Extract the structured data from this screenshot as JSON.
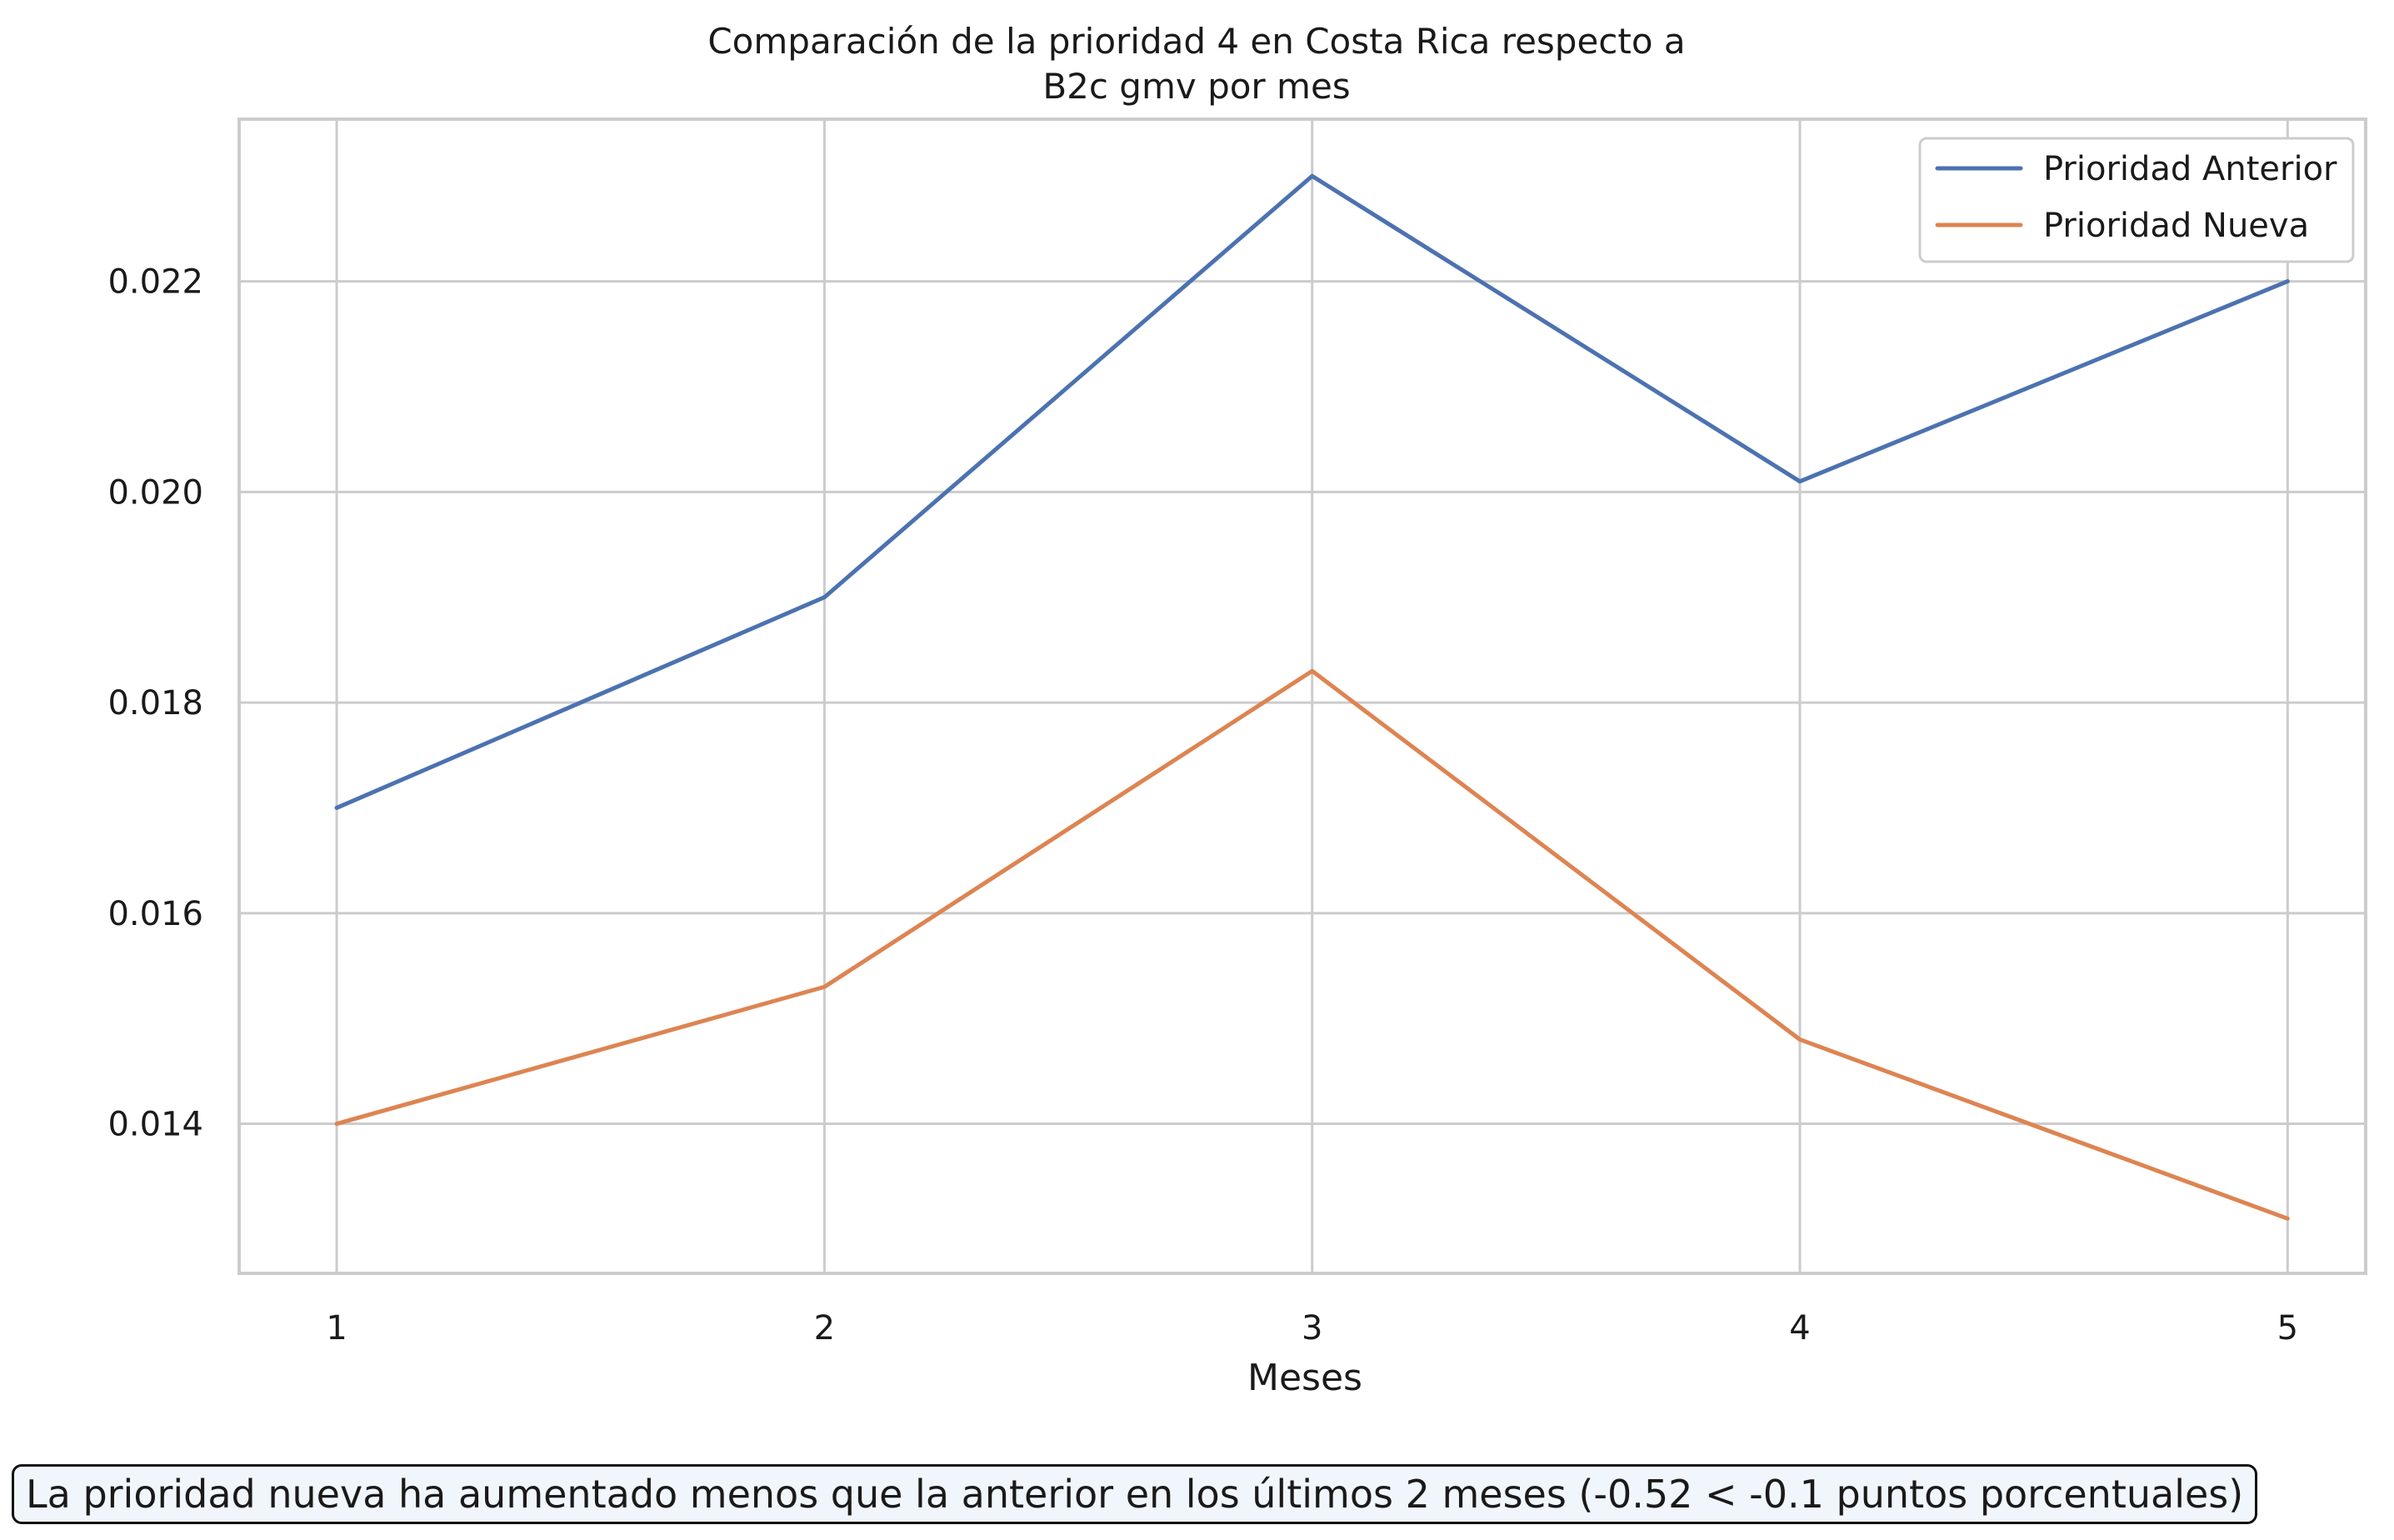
{
  "chart_data": {
    "type": "line",
    "title_line1": "Comparación de la prioridad 4 en Costa Rica respecto a",
    "title_line2": "B2c gmv por mes",
    "xlabel": "Meses",
    "ylabel": "",
    "x": [
      1,
      2,
      3,
      4,
      5
    ],
    "x_ticks": [
      "1",
      "2",
      "3",
      "4",
      "5"
    ],
    "y_ticks": [
      "0.014",
      "0.016",
      "0.018",
      "0.020",
      "0.022"
    ],
    "y_tick_values": [
      0.014,
      0.016,
      0.018,
      0.02,
      0.022
    ],
    "xlim": [
      0.8,
      5.16
    ],
    "ylim": [
      0.01258,
      0.02354
    ],
    "grid": true,
    "legend_position": "top-right",
    "series": [
      {
        "name": "Prioridad Anterior",
        "color": "#4c72b0",
        "values": [
          0.017,
          0.019,
          0.023,
          0.0201,
          0.022
        ]
      },
      {
        "name": "Prioridad Nueva",
        "color": "#dd8452",
        "values": [
          0.014,
          0.0153,
          0.0183,
          0.0148,
          0.0131
        ]
      }
    ]
  },
  "note": "La prioridad nueva ha aumentado menos que la anterior en los últimos 2 meses (-0.52 < -0.1 puntos porcentuales)"
}
